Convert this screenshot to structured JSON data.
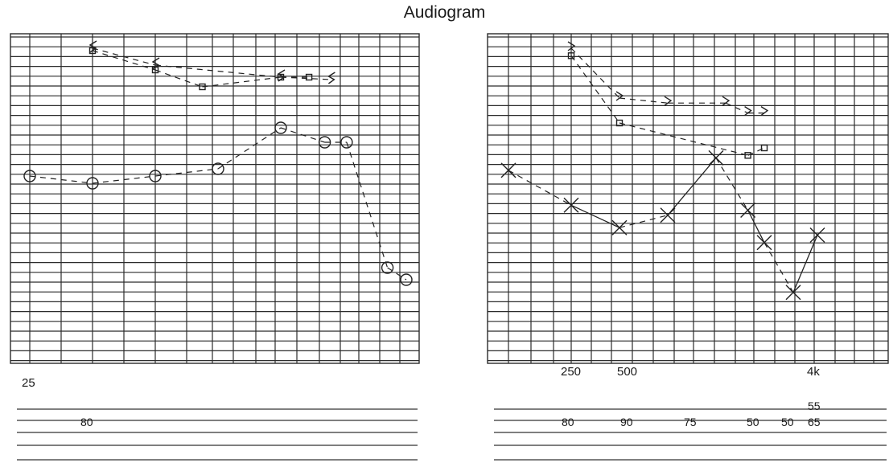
{
  "title": "Audiogram",
  "chart_data": [
    {
      "type": "scatter",
      "panel": "left",
      "x_tick_labels": [
        "25"
      ],
      "word_recognition_labels": [
        "80"
      ],
      "series": [
        {
          "symbol": "circle",
          "values": [
            {
              "x": 0,
              "y": 53
            },
            {
              "x": 2,
              "y": 56
            },
            {
              "x": 4,
              "y": 53
            },
            {
              "x": 6,
              "y": 50
            },
            {
              "x": 8,
              "y": 33
            },
            {
              "x": 9.4,
              "y": 39
            },
            {
              "x": 10.1,
              "y": 39
            },
            {
              "x": 11.4,
              "y": 91
            },
            {
              "x": 12,
              "y": 96
            }
          ]
        },
        {
          "symbol": "bracket",
          "values": [
            {
              "x": 2,
              "y": 0
            },
            {
              "x": 4,
              "y": 7
            },
            {
              "x": 8,
              "y": 12
            },
            {
              "x": 9.6,
              "y": 13
            }
          ]
        },
        {
          "symbol": "square",
          "values": [
            {
              "x": 2,
              "y": 1
            },
            {
              "x": 4,
              "y": 9
            },
            {
              "x": 5.5,
              "y": 16
            },
            {
              "x": 8,
              "y": 12
            },
            {
              "x": 8.9,
              "y": 12
            }
          ]
        }
      ]
    },
    {
      "type": "scatter",
      "panel": "right",
      "x_tick_labels": [
        "250",
        "500",
        "4k"
      ],
      "word_recognition_labels": [
        "80",
        "90",
        "75",
        "50",
        "50",
        "65",
        "55"
      ],
      "series": [
        {
          "symbol": "x",
          "values": [
            {
              "x": 0,
              "y": 49
            },
            {
              "x": 1.3,
              "y": 63
            },
            {
              "x": 2.3,
              "y": 72
            },
            {
              "x": 3.3,
              "y": 67
            },
            {
              "x": 4.3,
              "y": 44
            },
            {
              "x": 4.96,
              "y": 65
            },
            {
              "x": 5.3,
              "y": 78
            },
            {
              "x": 5.9,
              "y": 98
            },
            {
              "x": 6.4,
              "y": 75
            }
          ]
        },
        {
          "symbol": "bracket",
          "values": [
            {
              "x": 1.3,
              "y": 0
            },
            {
              "x": 2.3,
              "y": 20
            },
            {
              "x": 3.3,
              "y": 22
            },
            {
              "x": 4.5,
              "y": 22
            },
            {
              "x": 4.96,
              "y": 26
            },
            {
              "x": 5.3,
              "y": 26
            }
          ]
        },
        {
          "symbol": "square",
          "values": [
            {
              "x": 1.3,
              "y": 3
            },
            {
              "x": 2.3,
              "y": 30
            },
            {
              "x": 4.96,
              "y": 43
            },
            {
              "x": 5.3,
              "y": 40
            }
          ]
        }
      ]
    }
  ]
}
